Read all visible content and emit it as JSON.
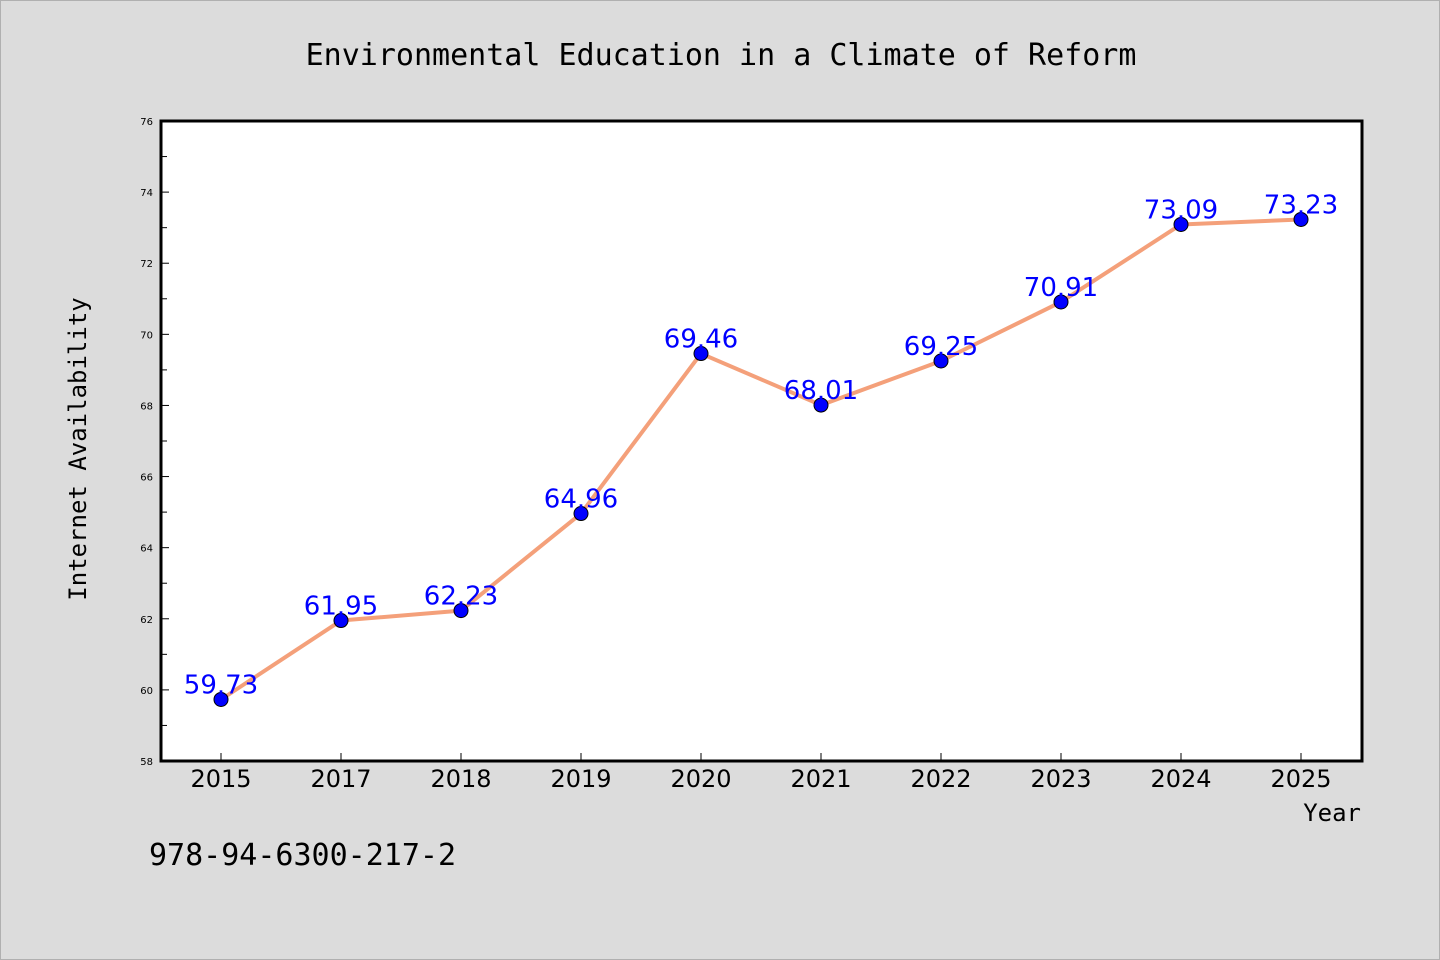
{
  "chart_data": {
    "type": "line",
    "title": "Environmental Education in a Climate of Reform",
    "xlabel": "Year",
    "ylabel": "Internet Availability",
    "categories": [
      "2015",
      "2017",
      "2018",
      "2019",
      "2020",
      "2021",
      "2022",
      "2023",
      "2024",
      "2025"
    ],
    "series": [
      {
        "values": [
          59.73,
          61.95,
          62.23,
          64.96,
          69.46,
          68.01,
          69.25,
          70.91,
          73.09,
          73.23
        ],
        "labels": [
          "59.73",
          "61.95",
          "62.23",
          "64.96",
          "69.46",
          "68.01",
          "69.25",
          "70.91",
          "73.09",
          "73.23"
        ]
      }
    ],
    "ylim": [
      58,
      76
    ],
    "yticks": [
      "58",
      "60",
      "62",
      "64",
      "66",
      "68",
      "70",
      "72",
      "74",
      "76"
    ],
    "grid": false,
    "line_color": "#f4a07a",
    "marker_color": "#0000ff",
    "label_color": "#0000ff"
  },
  "annotation": "978-94-6300-217-2"
}
